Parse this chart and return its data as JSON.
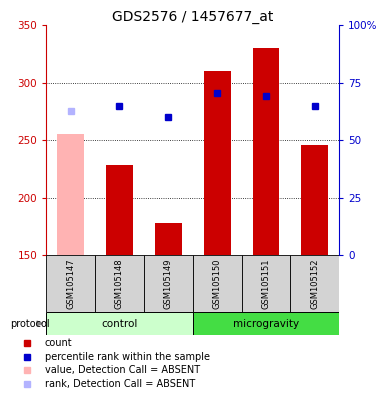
{
  "title": "GDS2576 / 1457677_at",
  "samples": [
    "GSM105147",
    "GSM105148",
    "GSM105149",
    "GSM105150",
    "GSM105151",
    "GSM105152"
  ],
  "groups": [
    "control",
    "control",
    "control",
    "microgravity",
    "microgravity",
    "microgravity"
  ],
  "bar_values": [
    255,
    228,
    178,
    310,
    330,
    246
  ],
  "bar_colors": [
    "#ffb3b3",
    "#cc0000",
    "#cc0000",
    "#cc0000",
    "#cc0000",
    "#cc0000"
  ],
  "rank_values": [
    275,
    280,
    270,
    291,
    288,
    280
  ],
  "rank_colors": [
    "#b3b3ff",
    "#0000cc",
    "#0000cc",
    "#0000cc",
    "#0000cc",
    "#0000cc"
  ],
  "ylim_left": [
    150,
    350
  ],
  "ylim_right": [
    0,
    100
  ],
  "yticks_left": [
    150,
    200,
    250,
    300,
    350
  ],
  "yticks_right": [
    0,
    25,
    50,
    75,
    100
  ],
  "ytick_labels_right": [
    "0",
    "25",
    "50",
    "75",
    "100%"
  ],
  "grid_values": [
    200,
    250,
    300
  ],
  "control_color_light": "#ccffcc",
  "microgravity_color": "#44dd44",
  "bar_bottom": 150,
  "left_axis_color": "#cc0000",
  "right_axis_color": "#0000cc",
  "title_fontsize": 10,
  "tick_fontsize": 7.5,
  "legend_items": [
    [
      "#cc0000",
      "count"
    ],
    [
      "#0000cc",
      "percentile rank within the sample"
    ],
    [
      "#ffb3b3",
      "value, Detection Call = ABSENT"
    ],
    [
      "#b3b3ff",
      "rank, Detection Call = ABSENT"
    ]
  ]
}
